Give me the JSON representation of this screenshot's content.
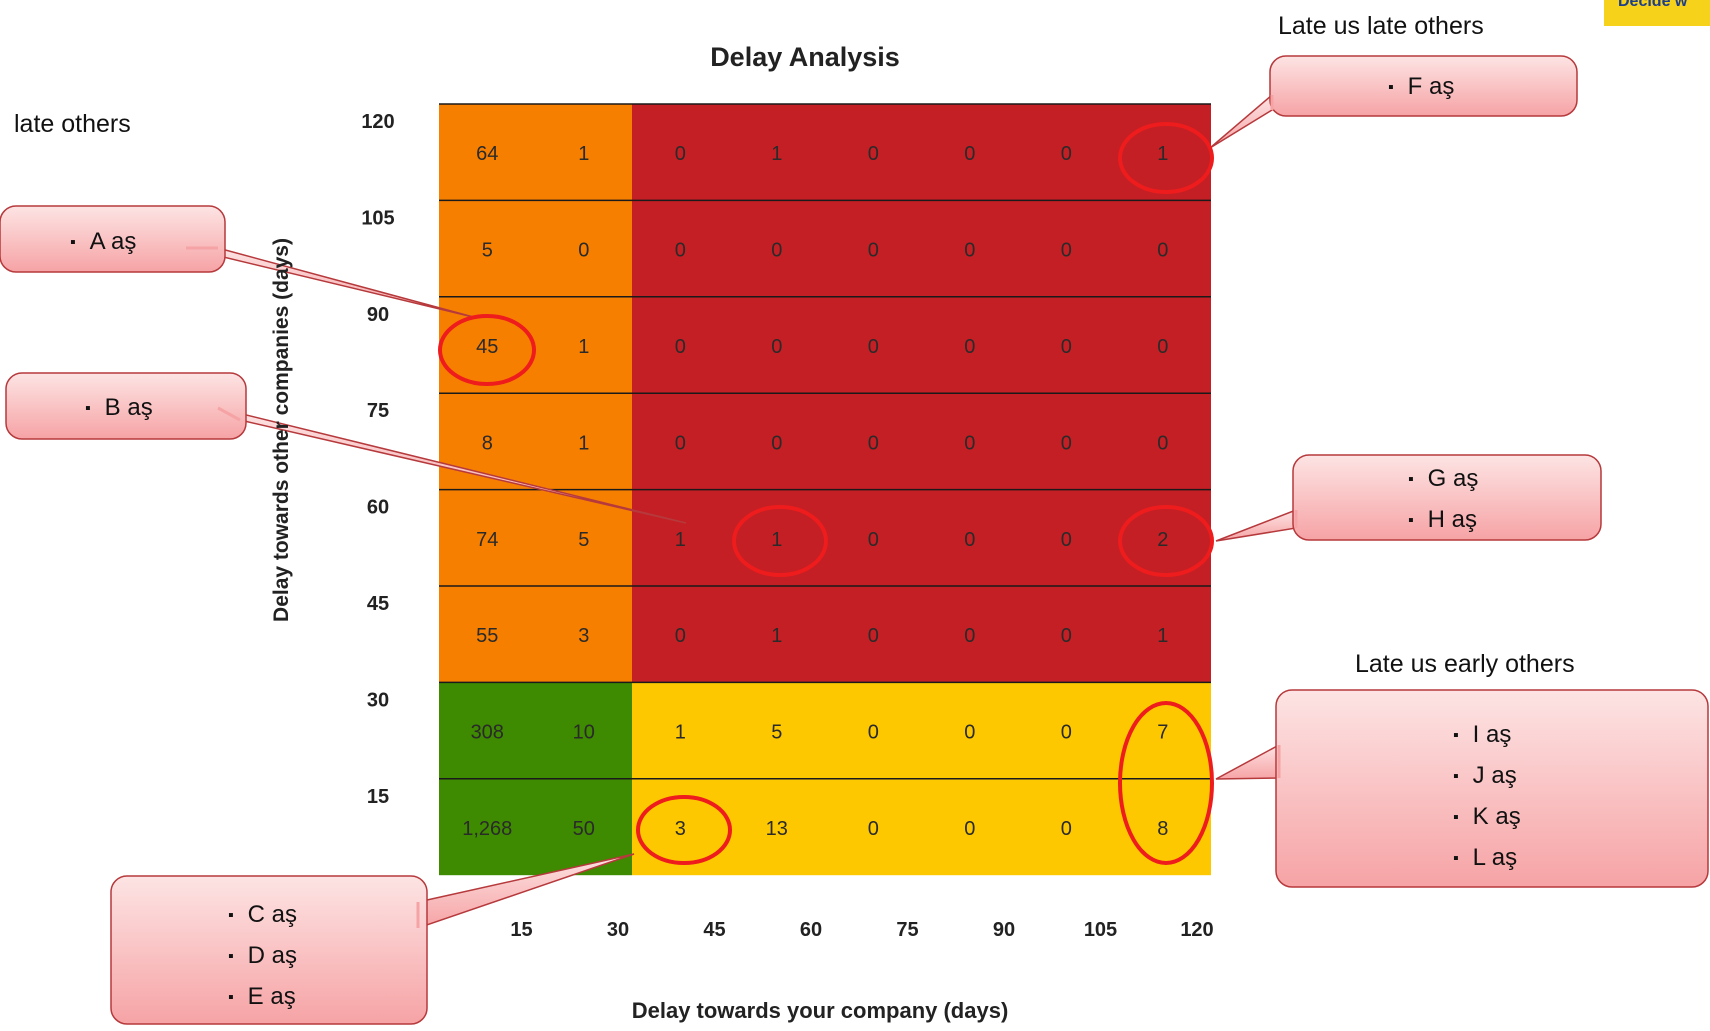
{
  "chart_data": {
    "type": "heatmap",
    "title": "Delay Analysis",
    "xlabel": "Delay towards your company (days)",
    "ylabel": "Delay towards other companies (days)",
    "x_ticks": [
      "15",
      "30",
      "45",
      "60",
      "75",
      "90",
      "105",
      "120"
    ],
    "y_ticks": [
      "120",
      "105",
      "90",
      "75",
      "60",
      "45",
      "30",
      "15"
    ],
    "rows": [
      [
        "64",
        "1",
        "0",
        "1",
        "0",
        "0",
        "0",
        "1"
      ],
      [
        "5",
        "0",
        "0",
        "0",
        "0",
        "0",
        "0",
        "0"
      ],
      [
        "45",
        "1",
        "0",
        "0",
        "0",
        "0",
        "0",
        "0"
      ],
      [
        "8",
        "1",
        "0",
        "0",
        "0",
        "0",
        "0",
        "0"
      ],
      [
        "74",
        "5",
        "1",
        "1",
        "0",
        "0",
        "0",
        "2"
      ],
      [
        "55",
        "3",
        "0",
        "1",
        "0",
        "0",
        "0",
        "1"
      ],
      [
        "308",
        "10",
        "1",
        "5",
        "0",
        "0",
        "0",
        "7"
      ],
      [
        "1,268",
        "50",
        "3",
        "13",
        "0",
        "0",
        "0",
        "8"
      ]
    ],
    "regions": {
      "early_us_late_others": "#f77f00",
      "late_us_late_others": "#c41f24",
      "early_us_early_others": "#3e8a00",
      "late_us_early_others": "#fdc800"
    },
    "highlight_color": "#ee1c1c"
  },
  "annotations": {
    "late_others": "late others",
    "late_us_late_others": "Late us late others",
    "late_us_early_others": "Late us early others",
    "brand_text": "Decide w"
  },
  "callouts": {
    "A": [
      "A aş"
    ],
    "B": [
      "B aş"
    ],
    "CDE": [
      "C aş",
      "D aş",
      "E aş"
    ],
    "F": [
      "F aş"
    ],
    "GH": [
      "G aş",
      "H aş"
    ],
    "IJKL": [
      "I aş",
      "J aş",
      "K aş",
      "L aş"
    ]
  },
  "colors": {
    "callout_top": "#fde4e4",
    "callout_bottom": "#f6a3a5",
    "callout_border": "#b6393c"
  }
}
